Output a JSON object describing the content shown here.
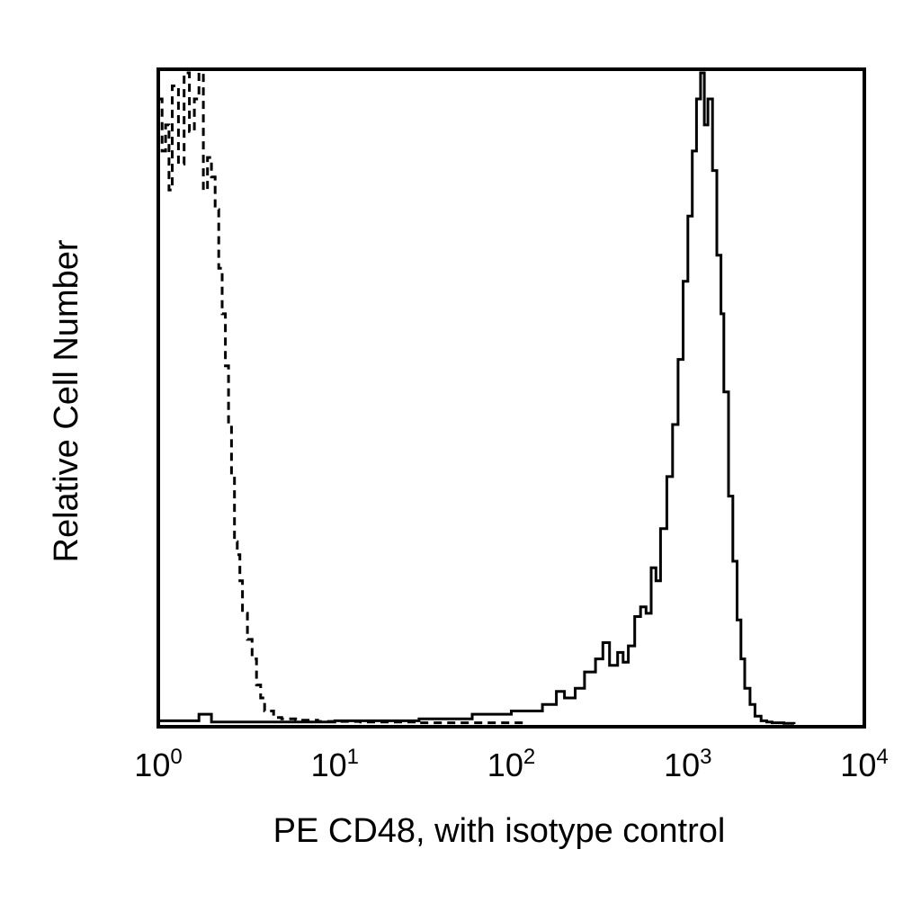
{
  "chart_data": {
    "type": "line",
    "xlabel": "PE CD48, with isotype control",
    "ylabel": "Relative Cell Number",
    "x_scale": "log",
    "xlim": [
      1,
      10000
    ],
    "ylim": [
      0,
      100
    ],
    "grid": false,
    "x_ticks": [
      {
        "base": "10",
        "exp": "0",
        "value": 1
      },
      {
        "base": "10",
        "exp": "1",
        "value": 10
      },
      {
        "base": "10",
        "exp": "2",
        "value": 100
      },
      {
        "base": "10",
        "exp": "3",
        "value": 1000
      },
      {
        "base": "10",
        "exp": "4",
        "value": 10000
      }
    ],
    "series": [
      {
        "style": "dashed",
        "color": "#000000",
        "x": [
          1.0,
          1.05,
          1.1,
          1.15,
          1.2,
          1.3,
          1.4,
          1.5,
          1.6,
          1.7,
          1.8,
          1.9,
          2.0,
          2.1,
          2.2,
          2.3,
          2.4,
          2.5,
          2.6,
          2.7,
          2.8,
          2.9,
          3.0,
          3.2,
          3.4,
          3.6,
          3.8,
          4.0,
          4.5,
          5.0,
          6.0,
          8.0,
          10.0,
          14.0,
          20.0,
          30.0,
          50.0,
          80.0,
          120.0
        ],
        "y": [
          96,
          88,
          92,
          82,
          98,
          86,
          100,
          91,
          96,
          100,
          82,
          87,
          84,
          79,
          70,
          63,
          55,
          46,
          38,
          28,
          26,
          22,
          17,
          13,
          10,
          6,
          4,
          2,
          1,
          0.8,
          0.6,
          0.4,
          0.4,
          0.3,
          0.3,
          0.2,
          0.2,
          0.2,
          0.1
        ]
      },
      {
        "style": "solid",
        "color": "#000000",
        "x": [
          1.0,
          1.7,
          2.0,
          10.0,
          30.0,
          60.0,
          100.0,
          150.0,
          180.0,
          200.0,
          230.0,
          260.0,
          300.0,
          330.0,
          360.0,
          400.0,
          430.0,
          460.0,
          500.0,
          540.0,
          580.0,
          620.0,
          660.0,
          700.0,
          760.0,
          820.0,
          880.0,
          940.0,
          1000.0,
          1060.0,
          1120.0,
          1180.0,
          1240.0,
          1300.0,
          1380.0,
          1460.0,
          1540.0,
          1600.0,
          1700.0,
          1800.0,
          1900.0,
          2000.0,
          2100.0,
          2250.0,
          2400.0,
          2600.0,
          2800.0,
          3000.0,
          3500.0,
          4000.0
        ],
        "y": [
          0.5,
          1.5,
          0.3,
          0.5,
          0.8,
          1.5,
          2.0,
          3.0,
          5.0,
          4.0,
          5.5,
          8.0,
          10.0,
          12.5,
          9.0,
          11.0,
          9.5,
          12.0,
          16.5,
          18.0,
          17.0,
          24.0,
          22.0,
          30.0,
          38.0,
          46.0,
          56.0,
          68.0,
          78.0,
          88.0,
          96.0,
          100.0,
          92.0,
          96.0,
          85.0,
          72.0,
          63.0,
          51.0,
          35.0,
          25.0,
          16.0,
          10.0,
          5.5,
          3.0,
          1.2,
          0.5,
          0.3,
          0.2,
          0.1,
          0.0
        ]
      }
    ]
  }
}
